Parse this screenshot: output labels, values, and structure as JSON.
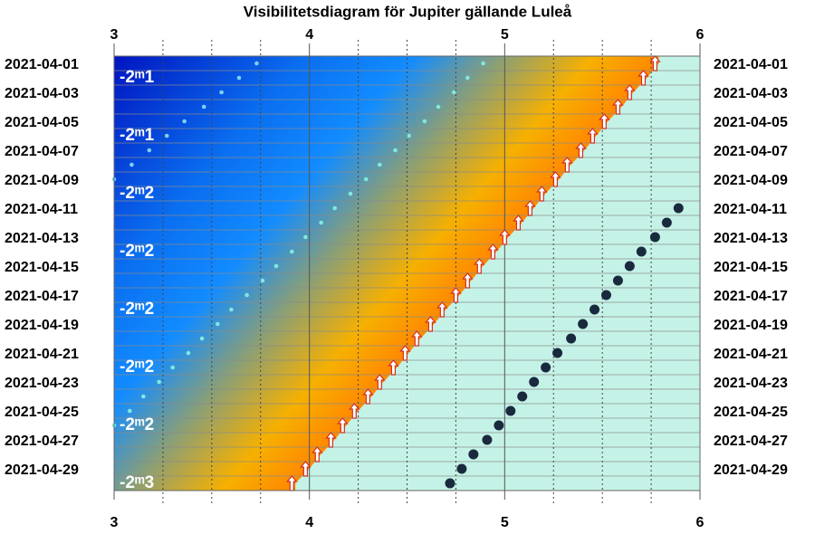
{
  "chart_data": {
    "type": "visibility",
    "title": "Visibilitetsdiagram för Jupiter gällande Luleå",
    "xlim": [
      3,
      6
    ],
    "xticks": [
      3,
      4,
      5,
      6
    ],
    "xminorticks": [
      3.25,
      3.5,
      3.75,
      4.25,
      4.5,
      4.75,
      5.25,
      5.5,
      5.75
    ],
    "y_categories": [
      "2021-04-01",
      null,
      "2021-04-03",
      null,
      "2021-04-05",
      null,
      "2021-04-07",
      null,
      "2021-04-09",
      null,
      "2021-04-11",
      null,
      "2021-04-13",
      null,
      "2021-04-15",
      null,
      "2021-04-17",
      null,
      "2021-04-19",
      null,
      "2021-04-21",
      null,
      "2021-04-23",
      null,
      "2021-04-25",
      null,
      "2021-04-27",
      null,
      "2021-04-29",
      null
    ],
    "day_color": "#c4f2e6",
    "series": [
      {
        "color": "#ffffff",
        "marker": "arrow",
        "values": [
          5.77,
          5.71,
          5.64,
          5.58,
          5.51,
          5.45,
          5.39,
          5.32,
          5.26,
          5.19,
          5.13,
          5.07,
          5.0,
          4.94,
          4.87,
          4.81,
          4.75,
          4.68,
          4.62,
          4.55,
          4.49,
          4.43,
          4.36,
          4.3,
          4.23,
          4.17,
          4.11,
          4.04,
          3.98,
          3.91
        ]
      },
      {
        "color": "#1a2a3e",
        "marker": "dot",
        "values": [
          null,
          null,
          null,
          null,
          null,
          null,
          null,
          null,
          null,
          null,
          5.89,
          5.83,
          5.77,
          5.7,
          5.64,
          5.58,
          5.52,
          5.46,
          5.4,
          5.34,
          5.27,
          5.21,
          5.15,
          5.09,
          5.03,
          4.97,
          4.91,
          4.84,
          4.78,
          4.72
        ]
      },
      {
        "color": "#7fd0f0",
        "marker": "small",
        "values": [
          3.73,
          3.64,
          3.55,
          3.46,
          3.36,
          3.27,
          3.18,
          3.09,
          3.0,
          null,
          null,
          null,
          null,
          null,
          null,
          null,
          null,
          null,
          null,
          null,
          null,
          null,
          null,
          null,
          null,
          null,
          null,
          null,
          null,
          null
        ]
      },
      {
        "color": "#7fe8e0",
        "marker": "small",
        "values": [
          4.89,
          4.81,
          4.74,
          4.66,
          4.59,
          4.51,
          4.44,
          4.36,
          4.29,
          4.21,
          4.13,
          4.06,
          3.98,
          3.91,
          3.83,
          3.76,
          3.68,
          3.6,
          3.53,
          3.45,
          3.38,
          3.3,
          3.23,
          3.15,
          3.08,
          3.0,
          null,
          null,
          null,
          null
        ]
      }
    ],
    "magnitudes": [
      null,
      -2.1,
      null,
      null,
      null,
      -2.1,
      null,
      null,
      null,
      -2.2,
      null,
      null,
      null,
      -2.2,
      null,
      null,
      null,
      -2.2,
      null,
      null,
      null,
      -2.2,
      null,
      null,
      null,
      -2.2,
      null,
      null,
      null,
      -2.3
    ],
    "magnitude_labels": [
      null,
      "-2ᵐ1",
      null,
      null,
      null,
      "-2ᵐ1",
      null,
      null,
      null,
      "-2ᵐ2",
      null,
      null,
      null,
      "-2ᵐ2",
      null,
      null,
      null,
      "-2ᵐ2",
      null,
      null,
      null,
      "-2ᵐ2",
      null,
      null,
      null,
      "-2ᵐ2",
      null,
      null,
      null,
      "-2ᵐ3"
    ]
  }
}
